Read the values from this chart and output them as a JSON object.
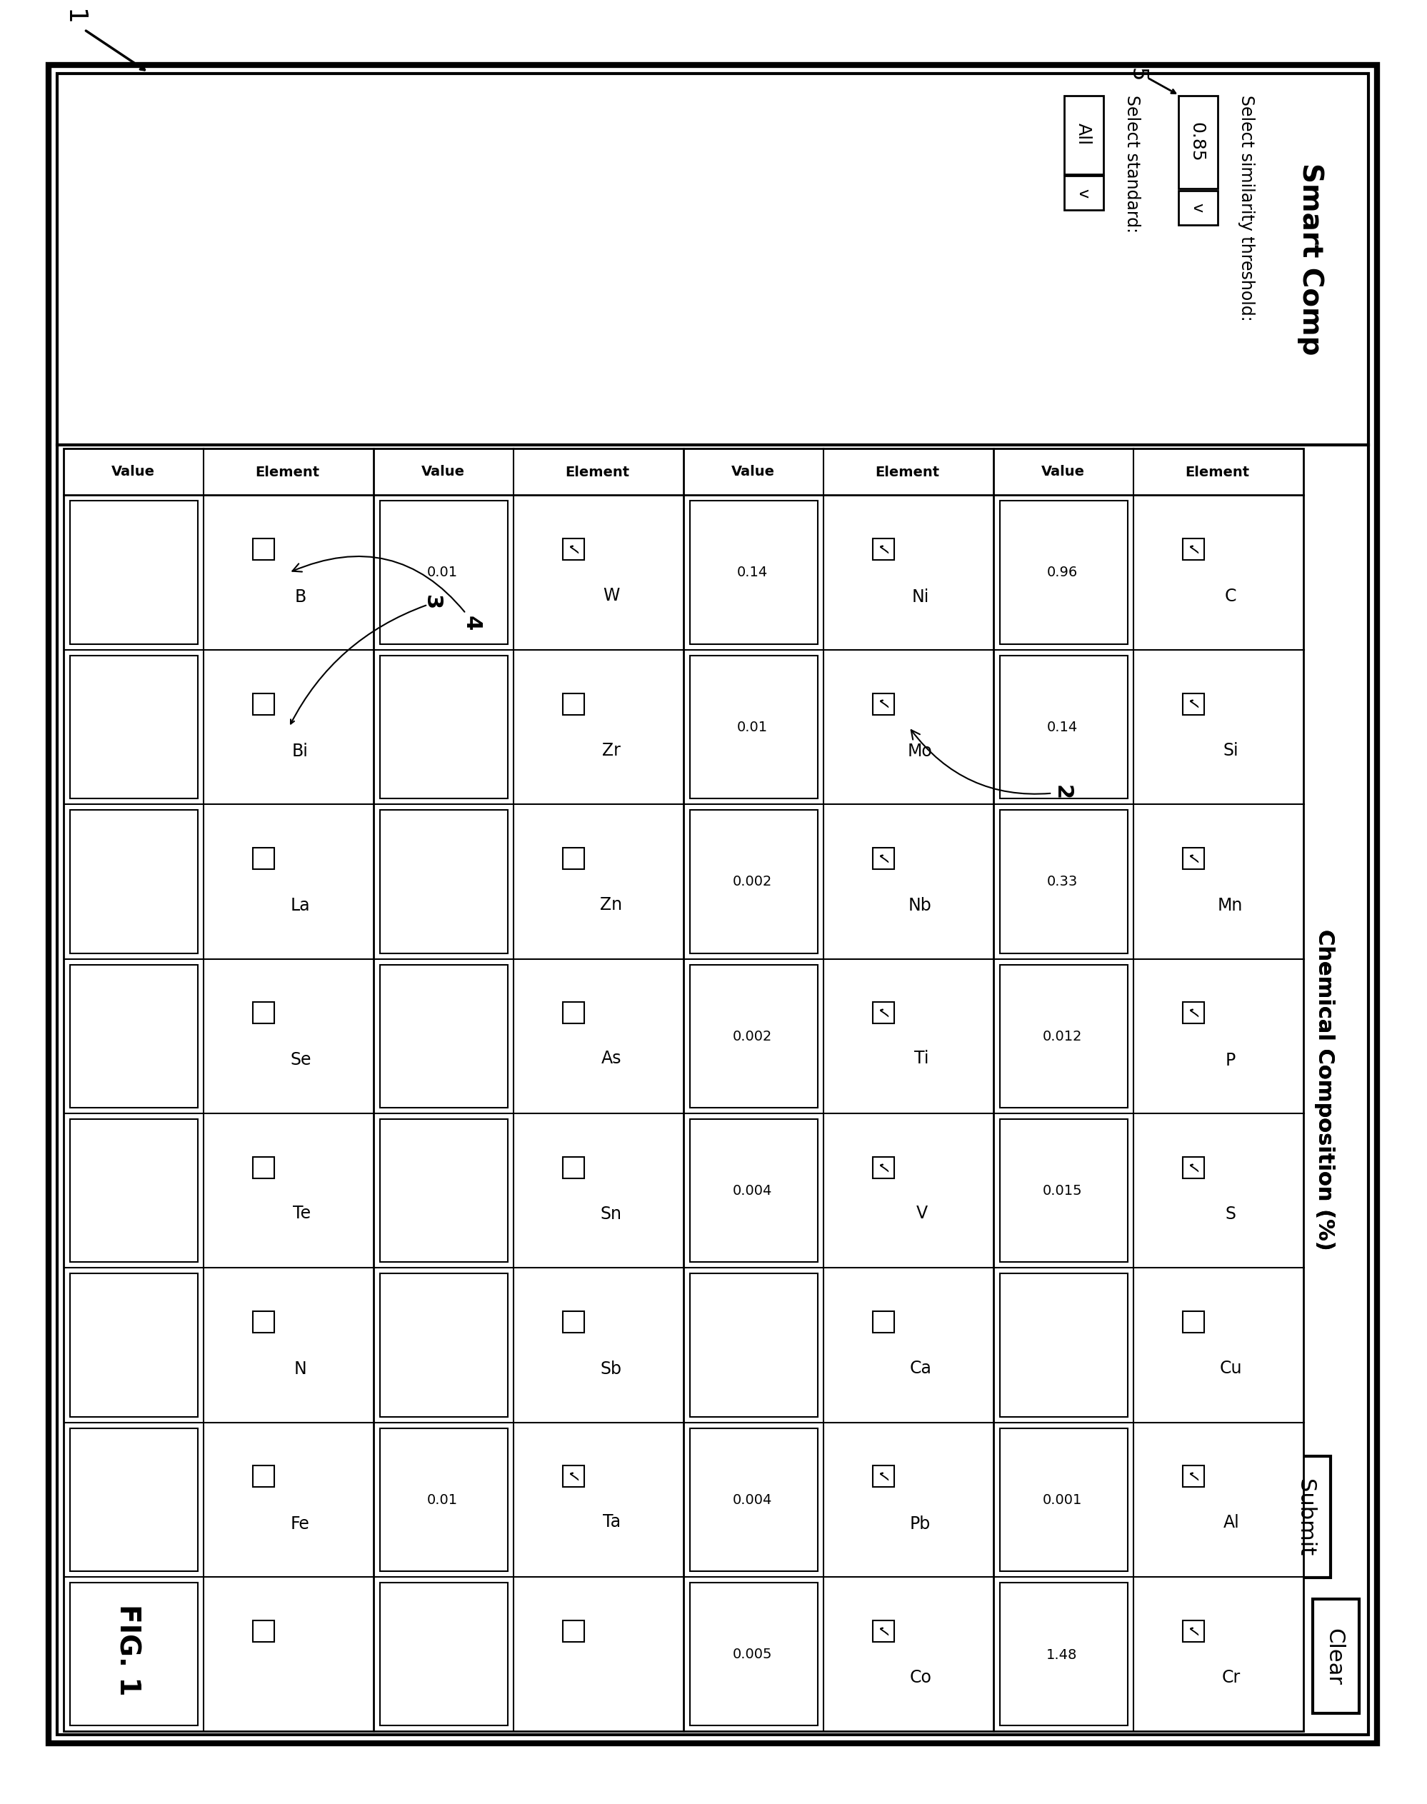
{
  "title": "Smart Comp",
  "fig_label": "FIG. 1",
  "background_color": "#ffffff",
  "similarity_threshold_label": "Select similarity threshold:",
  "similarity_threshold_value": "0.85",
  "select_standard_label": "Select standard:",
  "select_standard_value": "All",
  "submit_button": "Submit",
  "clear_button": "Clear",
  "table_title": "Chemical Composition (%)",
  "col1_elements": [
    "C",
    "Si",
    "Mn",
    "P",
    "S",
    "Cu",
    "Al",
    "Cr"
  ],
  "col1_checked": [
    true,
    true,
    true,
    true,
    true,
    false,
    true,
    true
  ],
  "col1_values": [
    "0.96",
    "0.14",
    "0.33",
    "0.012",
    "0.015",
    "",
    "0.001",
    "1.48"
  ],
  "col2_elements": [
    "Ni",
    "Mo",
    "Nb",
    "Ti",
    "V",
    "Ca",
    "Pb",
    "Co"
  ],
  "col2_checked": [
    true,
    true,
    true,
    true,
    true,
    false,
    true,
    true
  ],
  "col2_values": [
    "0.14",
    "0.01",
    "0.002",
    "0.002",
    "0.004",
    "",
    "0.004",
    "0.005"
  ],
  "col3_elements": [
    "W",
    "Zr",
    "Zn",
    "As",
    "Sn",
    "Sb",
    "Ta",
    ""
  ],
  "col3_checked": [
    true,
    false,
    false,
    false,
    false,
    false,
    true,
    false
  ],
  "col3_values": [
    "0.01",
    "",
    "",
    "",
    "",
    "",
    "0.01",
    ""
  ],
  "col4_elements": [
    "B",
    "Bi",
    "La",
    "Se",
    "Te",
    "N",
    "Fe",
    ""
  ],
  "col4_checked": [
    false,
    false,
    false,
    false,
    false,
    false,
    false,
    false
  ],
  "col4_values": [
    "",
    "",
    "",
    "",
    "",
    "",
    "",
    ""
  ],
  "annotation_2": "2",
  "annotation_3": "3",
  "annotation_4": "4",
  "label_1": "1",
  "label_5": "5"
}
